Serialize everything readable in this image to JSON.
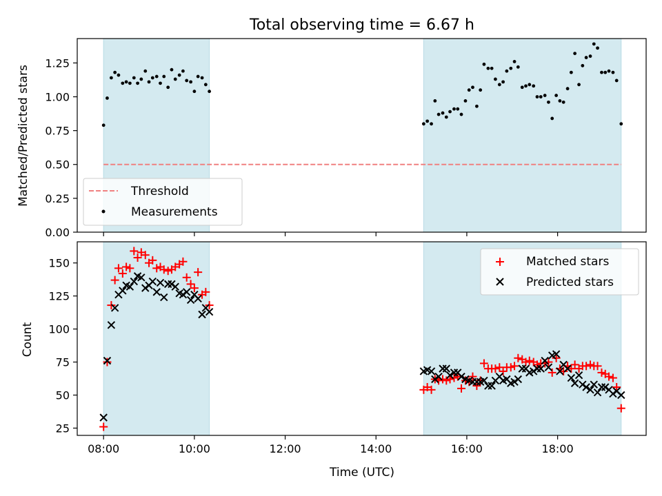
{
  "figure": {
    "title": "Total observing time = 6.67 h",
    "xlabel": "Time (UTC)"
  },
  "colors": {
    "shade": "#d4eaf0",
    "threshold": "#f08080",
    "matched": "#ff0000",
    "predicted": "#000000"
  },
  "chart_data": [
    {
      "type": "scatter",
      "panel": "top",
      "xlabel": "",
      "ylabel": "Matched/Predicted stars",
      "xlim": [
        7.42,
        19.95
      ],
      "ylim": [
        0.0,
        1.43
      ],
      "x_ticks": [
        8,
        10,
        12,
        14,
        16,
        18
      ],
      "x_tick_labels": [],
      "y_ticks": [
        0.0,
        0.25,
        0.5,
        0.75,
        1.0,
        1.25
      ],
      "y_tick_labels": [
        "0.00",
        "0.25",
        "0.50",
        "0.75",
        "1.00",
        "1.25"
      ],
      "shaded_intervals": [
        [
          8.0,
          10.33
        ],
        [
          15.05,
          19.4
        ]
      ],
      "threshold": {
        "name": "Threshold",
        "y": 0.5,
        "x_range": [
          8.0,
          19.4
        ]
      },
      "legend": {
        "position": "lower-left",
        "entries": [
          "Threshold",
          "Measurements"
        ]
      },
      "series": [
        {
          "name": "Measurements",
          "marker": "dot",
          "points": [
            [
              8.0,
              0.79
            ],
            [
              8.08,
              0.99
            ],
            [
              8.17,
              1.14
            ],
            [
              8.25,
              1.18
            ],
            [
              8.33,
              1.16
            ],
            [
              8.42,
              1.1
            ],
            [
              8.5,
              1.11
            ],
            [
              8.58,
              1.1
            ],
            [
              8.67,
              1.14
            ],
            [
              8.75,
              1.1
            ],
            [
              8.83,
              1.13
            ],
            [
              8.92,
              1.19
            ],
            [
              9.0,
              1.11
            ],
            [
              9.08,
              1.14
            ],
            [
              9.17,
              1.15
            ],
            [
              9.25,
              1.1
            ],
            [
              9.33,
              1.15
            ],
            [
              9.42,
              1.07
            ],
            [
              9.5,
              1.2
            ],
            [
              9.58,
              1.13
            ],
            [
              9.67,
              1.16
            ],
            [
              9.75,
              1.19
            ],
            [
              9.83,
              1.12
            ],
            [
              9.92,
              1.11
            ],
            [
              10.0,
              1.04
            ],
            [
              10.08,
              1.15
            ],
            [
              10.17,
              1.14
            ],
            [
              10.25,
              1.09
            ],
            [
              10.33,
              1.04
            ],
            [
              15.05,
              0.8
            ],
            [
              15.13,
              0.82
            ],
            [
              15.22,
              0.8
            ],
            [
              15.3,
              0.97
            ],
            [
              15.38,
              0.87
            ],
            [
              15.47,
              0.88
            ],
            [
              15.55,
              0.85
            ],
            [
              15.63,
              0.89
            ],
            [
              15.72,
              0.91
            ],
            [
              15.8,
              0.91
            ],
            [
              15.88,
              0.87
            ],
            [
              15.97,
              0.97
            ],
            [
              16.05,
              1.05
            ],
            [
              16.13,
              1.07
            ],
            [
              16.22,
              0.93
            ],
            [
              16.3,
              1.05
            ],
            [
              16.38,
              1.24
            ],
            [
              16.47,
              1.21
            ],
            [
              16.55,
              1.21
            ],
            [
              16.63,
              1.13
            ],
            [
              16.72,
              1.09
            ],
            [
              16.8,
              1.11
            ],
            [
              16.88,
              1.19
            ],
            [
              16.97,
              1.21
            ],
            [
              17.05,
              1.26
            ],
            [
              17.13,
              1.22
            ],
            [
              17.22,
              1.07
            ],
            [
              17.3,
              1.08
            ],
            [
              17.38,
              1.09
            ],
            [
              17.47,
              1.08
            ],
            [
              17.55,
              1.0
            ],
            [
              17.63,
              1.0
            ],
            [
              17.72,
              1.01
            ],
            [
              17.8,
              0.96
            ],
            [
              17.88,
              0.84
            ],
            [
              17.97,
              1.01
            ],
            [
              18.05,
              0.97
            ],
            [
              18.13,
              0.96
            ],
            [
              18.22,
              1.06
            ],
            [
              18.3,
              1.18
            ],
            [
              18.38,
              1.32
            ],
            [
              18.47,
              1.09
            ],
            [
              18.55,
              1.23
            ],
            [
              18.63,
              1.29
            ],
            [
              18.72,
              1.3
            ],
            [
              18.8,
              1.39
            ],
            [
              18.88,
              1.36
            ],
            [
              18.97,
              1.18
            ],
            [
              19.05,
              1.18
            ],
            [
              19.13,
              1.19
            ],
            [
              19.22,
              1.18
            ],
            [
              19.3,
              1.12
            ],
            [
              19.4,
              0.8
            ]
          ]
        }
      ]
    },
    {
      "type": "scatter",
      "panel": "bottom",
      "xlabel": "Time (UTC)",
      "ylabel": "Count",
      "xlim": [
        7.42,
        19.95
      ],
      "ylim": [
        19.5,
        166.0
      ],
      "x_ticks": [
        8,
        10,
        12,
        14,
        16,
        18
      ],
      "x_tick_labels": [
        "08:00",
        "10:00",
        "12:00",
        "14:00",
        "16:00",
        "18:00"
      ],
      "y_ticks": [
        25,
        50,
        75,
        100,
        125,
        150
      ],
      "y_tick_labels": [
        "25",
        "50",
        "75",
        "100",
        "125",
        "150"
      ],
      "shaded_intervals": [
        [
          8.0,
          10.33
        ],
        [
          15.05,
          19.4
        ]
      ],
      "legend": {
        "position": "upper-right",
        "entries": [
          "Matched stars",
          "Predicted stars"
        ]
      },
      "series": [
        {
          "name": "Matched stars",
          "marker": "plus",
          "points": [
            [
              8.0,
              26
            ],
            [
              8.08,
              75
            ],
            [
              8.17,
              118
            ],
            [
              8.25,
              137
            ],
            [
              8.33,
              146
            ],
            [
              8.42,
              142
            ],
            [
              8.5,
              147
            ],
            [
              8.58,
              146
            ],
            [
              8.67,
              159
            ],
            [
              8.75,
              154
            ],
            [
              8.83,
              158
            ],
            [
              8.92,
              156
            ],
            [
              9.0,
              150
            ],
            [
              9.08,
              152
            ],
            [
              9.17,
              146
            ],
            [
              9.25,
              147
            ],
            [
              9.33,
              145
            ],
            [
              9.42,
              144
            ],
            [
              9.5,
              145
            ],
            [
              9.58,
              147
            ],
            [
              9.67,
              149
            ],
            [
              9.75,
              151
            ],
            [
              9.83,
              139
            ],
            [
              9.92,
              134
            ],
            [
              10.0,
              131
            ],
            [
              10.08,
              143
            ],
            [
              10.17,
              126
            ],
            [
              10.25,
              128
            ],
            [
              10.33,
              118
            ],
            [
              15.05,
              54
            ],
            [
              15.13,
              56
            ],
            [
              15.22,
              54
            ],
            [
              15.3,
              62
            ],
            [
              15.38,
              61
            ],
            [
              15.47,
              62
            ],
            [
              15.55,
              61
            ],
            [
              15.63,
              62
            ],
            [
              15.72,
              63
            ],
            [
              15.8,
              64
            ],
            [
              15.88,
              55
            ],
            [
              15.97,
              61
            ],
            [
              16.05,
              60
            ],
            [
              16.13,
              64
            ],
            [
              16.22,
              57
            ],
            [
              16.3,
              61
            ],
            [
              16.38,
              74
            ],
            [
              16.47,
              70
            ],
            [
              16.55,
              70
            ],
            [
              16.63,
              70
            ],
            [
              16.72,
              71
            ],
            [
              16.8,
              68
            ],
            [
              16.88,
              71
            ],
            [
              16.97,
              71
            ],
            [
              17.05,
              72
            ],
            [
              17.13,
              78
            ],
            [
              17.22,
              77
            ],
            [
              17.3,
              75
            ],
            [
              17.38,
              76
            ],
            [
              17.47,
              75
            ],
            [
              17.55,
              73
            ],
            [
              17.63,
              74
            ],
            [
              17.72,
              74
            ],
            [
              17.8,
              75
            ],
            [
              17.88,
              67
            ],
            [
              17.97,
              78
            ],
            [
              18.05,
              70
            ],
            [
              18.13,
              68
            ],
            [
              18.22,
              72
            ],
            [
              18.3,
              70
            ],
            [
              18.38,
              73
            ],
            [
              18.47,
              70
            ],
            [
              18.55,
              72
            ],
            [
              18.63,
              72
            ],
            [
              18.72,
              73
            ],
            [
              18.8,
              72
            ],
            [
              18.88,
              72
            ],
            [
              18.97,
              67
            ],
            [
              19.05,
              66
            ],
            [
              19.13,
              64
            ],
            [
              19.22,
              63
            ],
            [
              19.3,
              56
            ],
            [
              19.4,
              40
            ]
          ]
        },
        {
          "name": "Predicted stars",
          "marker": "x",
          "points": [
            [
              8.0,
              33
            ],
            [
              8.08,
              76
            ],
            [
              8.17,
              103
            ],
            [
              8.25,
              116
            ],
            [
              8.33,
              126
            ],
            [
              8.42,
              129
            ],
            [
              8.5,
              133
            ],
            [
              8.58,
              132
            ],
            [
              8.67,
              136
            ],
            [
              8.75,
              140
            ],
            [
              8.83,
              139
            ],
            [
              8.92,
              131
            ],
            [
              9.0,
              133
            ],
            [
              9.08,
              136
            ],
            [
              9.17,
              128
            ],
            [
              9.25,
              135
            ],
            [
              9.33,
              124
            ],
            [
              9.42,
              134
            ],
            [
              9.5,
              134
            ],
            [
              9.58,
              132
            ],
            [
              9.67,
              127
            ],
            [
              9.75,
              126
            ],
            [
              9.83,
              128
            ],
            [
              9.92,
              122
            ],
            [
              10.0,
              126
            ],
            [
              10.08,
              123
            ],
            [
              10.17,
              111
            ],
            [
              10.25,
              116
            ],
            [
              10.33,
              113
            ],
            [
              15.05,
              68
            ],
            [
              15.13,
              69
            ],
            [
              15.22,
              68
            ],
            [
              15.3,
              62
            ],
            [
              15.38,
              64
            ],
            [
              15.47,
              70
            ],
            [
              15.55,
              70
            ],
            [
              15.63,
              65
            ],
            [
              15.72,
              67
            ],
            [
              15.8,
              67
            ],
            [
              15.88,
              64
            ],
            [
              15.97,
              62
            ],
            [
              16.05,
              61
            ],
            [
              16.13,
              60
            ],
            [
              16.22,
              60
            ],
            [
              16.3,
              60
            ],
            [
              16.38,
              61
            ],
            [
              16.47,
              57
            ],
            [
              16.55,
              57
            ],
            [
              16.63,
              61
            ],
            [
              16.72,
              64
            ],
            [
              16.8,
              61
            ],
            [
              16.88,
              62
            ],
            [
              16.97,
              59
            ],
            [
              17.05,
              60
            ],
            [
              17.13,
              62
            ],
            [
              17.22,
              70
            ],
            [
              17.3,
              70
            ],
            [
              17.38,
              67
            ],
            [
              17.47,
              68
            ],
            [
              17.55,
              70
            ],
            [
              17.63,
              70
            ],
            [
              17.72,
              76
            ],
            [
              17.8,
              71
            ],
            [
              17.88,
              80
            ],
            [
              17.97,
              81
            ],
            [
              18.05,
              68
            ],
            [
              18.13,
              73
            ],
            [
              18.22,
              70
            ],
            [
              18.3,
              63
            ],
            [
              18.38,
              59
            ],
            [
              18.47,
              65
            ],
            [
              18.55,
              58
            ],
            [
              18.63,
              56
            ],
            [
              18.72,
              54
            ],
            [
              18.8,
              58
            ],
            [
              18.88,
              52
            ],
            [
              18.97,
              56
            ],
            [
              19.05,
              56
            ],
            [
              19.13,
              54
            ],
            [
              19.22,
              51
            ],
            [
              19.3,
              53
            ],
            [
              19.4,
              50
            ]
          ]
        }
      ]
    }
  ]
}
